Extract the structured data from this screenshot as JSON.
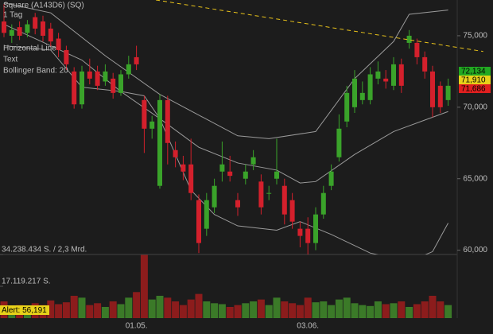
{
  "header": {
    "title": "Square (A143D6) (SQ)",
    "interval": "1 Tag"
  },
  "labels": {
    "trendline": "Horizontal Line",
    "text": "Text",
    "bands": "Bollinger Band: 20"
  },
  "alert": {
    "value": 56.191,
    "label": "Alert: 56,191"
  },
  "chart_data": [
    {
      "type": "candlestick",
      "open": [
        76.0,
        75.0,
        75.6,
        75.2,
        76.3,
        76.0,
        75.5,
        74.8,
        74.0,
        72.5,
        70.2,
        72.5,
        72.5,
        71.8,
        72.0,
        71.0,
        72.3,
        73.5,
        70.5,
        68.5,
        64.5,
        70.5,
        67.0,
        66.0,
        66.0,
        63.5,
        61.5,
        63.0,
        65.5,
        65.5,
        63.5,
        65.0,
        66.0,
        64.8,
        64.0,
        65.0,
        64.5,
        63.5,
        61.5,
        61.5,
        60.5,
        62.5,
        64.5,
        66.5,
        69.0,
        70.0,
        70.5,
        70.5,
        72.0,
        72.0,
        71.5,
        73.0,
        74.5,
        74.5,
        73.5,
        72.5,
        71.5,
        70.5
      ],
      "high": [
        77.2,
        75.8,
        76.0,
        76.1,
        76.6,
        76.4,
        75.9,
        75.2,
        74.3,
        72.8,
        72.9,
        73.4,
        72.9,
        73.0,
        72.4,
        72.6,
        73.6,
        74.3,
        70.8,
        69.4,
        70.9,
        70.8,
        67.6,
        66.6,
        67.8,
        63.9,
        64.0,
        65.0,
        67.6,
        66.6,
        64.0,
        66.0,
        67.0,
        65.3,
        64.5,
        67.8,
        65.0,
        64.0,
        62.0,
        62.3,
        63.0,
        64.5,
        66.0,
        69.5,
        71.5,
        72.6,
        71.8,
        72.8,
        73.2,
        72.6,
        73.5,
        73.4,
        75.4,
        74.8,
        73.9,
        72.9,
        71.8,
        72.0
      ],
      "low": [
        74.9,
        74.5,
        74.7,
        74.9,
        75.1,
        74.6,
        74.2,
        73.5,
        72.6,
        69.9,
        69.9,
        71.6,
        71.2,
        71.5,
        70.6,
        70.8,
        72.0,
        72.6,
        66.8,
        67.8,
        64.3,
        66.0,
        65.8,
        64.9,
        63.5,
        59.8,
        61.0,
        62.6,
        64.8,
        64.8,
        62.4,
        64.6,
        65.6,
        62.5,
        63.5,
        64.6,
        61.8,
        61.5,
        60.2,
        59.6,
        60.0,
        62.2,
        64.2,
        66.2,
        68.6,
        69.6,
        70.2,
        70.2,
        71.6,
        71.3,
        71.2,
        71.0,
        74.1,
        73.0,
        72.0,
        69.3,
        69.6,
        70.1
      ],
      "close": [
        75.2,
        75.4,
        75.0,
        75.8,
        75.5,
        75.0,
        74.6,
        74.0,
        73.0,
        70.2,
        72.5,
        72.0,
        71.5,
        72.5,
        71.0,
        72.3,
        73.0,
        73.0,
        68.5,
        69.0,
        70.5,
        67.5,
        66.5,
        65.5,
        64.0,
        60.5,
        63.5,
        64.5,
        66.0,
        65.2,
        63.0,
        65.5,
        66.5,
        63.0,
        64.0,
        65.5,
        62.5,
        62.0,
        61.0,
        60.5,
        62.5,
        64.0,
        65.5,
        68.5,
        71.0,
        72.0,
        71.0,
        72.3,
        72.5,
        71.8,
        73.0,
        71.5,
        75.0,
        73.5,
        72.5,
        70.0,
        70.0,
        71.5
      ],
      "up_color": "#3aa32a",
      "down_color": "#d4202c",
      "bands": [
        {
          "x": [
            0,
            6,
            13,
            20,
            30,
            34,
            40,
            45,
            50,
            52,
            57
          ],
          "values": [
            77.3,
            76.6,
            73.6,
            70.9,
            68.0,
            67.8,
            68.3,
            72.0,
            74.6,
            76.5,
            76.8
          ],
          "color": "#9a9a9a"
        },
        {
          "x": [
            0,
            10,
            15,
            20,
            25,
            30,
            35,
            38,
            40,
            45,
            50,
            54,
            57
          ],
          "values": [
            75.8,
            73.3,
            71.1,
            69.2,
            67.2,
            66.1,
            65.6,
            64.7,
            64.8,
            66.7,
            68.3,
            69.1,
            69.7
          ],
          "color": "#9a9a9a"
        },
        {
          "x": [
            0,
            6,
            10,
            15,
            18,
            20,
            24,
            27,
            30,
            35,
            38,
            42,
            47,
            52,
            55,
            57
          ],
          "values": [
            74.3,
            74.0,
            71.4,
            71.1,
            70.8,
            69.2,
            64.2,
            62.5,
            61.7,
            61.4,
            62.0,
            61.1,
            59.8,
            59.2,
            59.9,
            61.9
          ],
          "color": "#9a9a9a"
        }
      ],
      "trendline": {
        "x": [
          19.5,
          61.5
        ],
        "values": [
          77.5,
          73.9
        ],
        "color": "#e8c21a"
      },
      "ylim": [
        59.7,
        77.5
      ],
      "yticks": [
        {
          "value": 60,
          "label": "60,000"
        },
        {
          "value": 65,
          "label": "65,000"
        },
        {
          "value": 70,
          "label": "70,000"
        },
        {
          "value": 75,
          "label": "75,000"
        }
      ],
      "price_tags": [
        {
          "value": 72.134,
          "label": "72,134",
          "color": "#22a822"
        },
        {
          "value": 71.91,
          "label": "71,910",
          "color": "#e8d21a"
        },
        {
          "value": 71.686,
          "label": "71,686",
          "color": "#e02020"
        }
      ]
    },
    {
      "type": "bar",
      "values": [
        9000000,
        6000000,
        7000000,
        6500000,
        8000000,
        7000000,
        9500000,
        7500000,
        8500000,
        12000000,
        11000000,
        7000000,
        8000000,
        6000000,
        9000000,
        7500000,
        11000000,
        14000000,
        34000000,
        10000000,
        12000000,
        11000000,
        9000000,
        7000000,
        10000000,
        13000000,
        9000000,
        8000000,
        7500000,
        6000000,
        7000000,
        8000000,
        9000000,
        10000000,
        7000000,
        11000000,
        9000000,
        8000000,
        7000000,
        11000000,
        8500000,
        9000000,
        7000000,
        10000000,
        11000000,
        8000000,
        7000000,
        6500000,
        9000000,
        7500000,
        8000000,
        9000000,
        6000000,
        7500000,
        9000000,
        12000000,
        9000000,
        7000000
      ],
      "up_color": "#3b7a28",
      "down_color": "#8c1c1c",
      "categories": [
        null,
        null,
        null,
        null,
        null,
        null,
        null,
        null,
        null,
        null,
        null,
        null,
        null,
        null,
        null,
        null,
        null,
        "01.05.",
        null,
        null,
        null,
        null,
        null,
        null,
        null,
        null,
        null,
        null,
        null,
        null,
        null,
        null,
        null,
        null,
        null,
        null,
        null,
        null,
        null,
        "03.06.",
        null,
        null,
        null,
        null,
        null,
        null,
        null,
        null,
        null,
        null,
        null,
        null,
        null,
        null,
        null,
        null,
        null,
        null
      ],
      "ylim": [
        0,
        34238434
      ],
      "yticks": [
        {
          "value": 17119217,
          "label": "17.119.217 S."
        },
        {
          "value": 34238434,
          "label": "34.238.434 S. / 2,3 Mrd."
        }
      ]
    }
  ]
}
